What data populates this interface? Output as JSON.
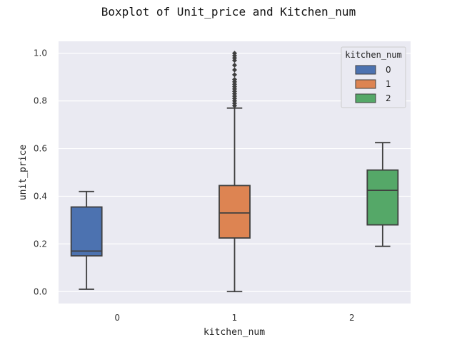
{
  "chart_data": {
    "type": "box",
    "title": "Boxplot of Unit_price and Kitchen_num",
    "xlabel": "kitchen_num",
    "ylabel": "unit_price",
    "ylim": [
      -0.05,
      1.05
    ],
    "yticks": [
      "0.0",
      "0.2",
      "0.4",
      "0.6",
      "0.8",
      "1.0"
    ],
    "ytick_values": [
      0.0,
      0.2,
      0.4,
      0.6,
      0.8,
      1.0
    ],
    "categories": [
      "0",
      "1",
      "2"
    ],
    "grid": true,
    "legend": {
      "title": "kitchen_num",
      "placement": "top-right",
      "entries": [
        "0",
        "1",
        "2"
      ]
    },
    "series": [
      {
        "name": "0",
        "category": "0",
        "color": "#4C72B0",
        "whisker_low": 0.01,
        "q1": 0.15,
        "median": 0.17,
        "q3": 0.355,
        "whisker_high": 0.42,
        "outliers": []
      },
      {
        "name": "1",
        "category": "1",
        "color": "#DD8452",
        "whisker_low": 0.0,
        "q1": 0.225,
        "median": 0.33,
        "q3": 0.445,
        "whisker_high": 0.77,
        "outliers": [
          0.78,
          0.79,
          0.8,
          0.81,
          0.82,
          0.83,
          0.84,
          0.85,
          0.86,
          0.87,
          0.88,
          0.89,
          0.91,
          0.93,
          0.95,
          0.97,
          0.98,
          0.99,
          1.0
        ]
      },
      {
        "name": "2",
        "category": "2",
        "color": "#55A868",
        "whisker_low": 0.19,
        "q1": 0.28,
        "median": 0.425,
        "q3": 0.51,
        "whisker_high": 0.625,
        "outliers": []
      }
    ]
  }
}
